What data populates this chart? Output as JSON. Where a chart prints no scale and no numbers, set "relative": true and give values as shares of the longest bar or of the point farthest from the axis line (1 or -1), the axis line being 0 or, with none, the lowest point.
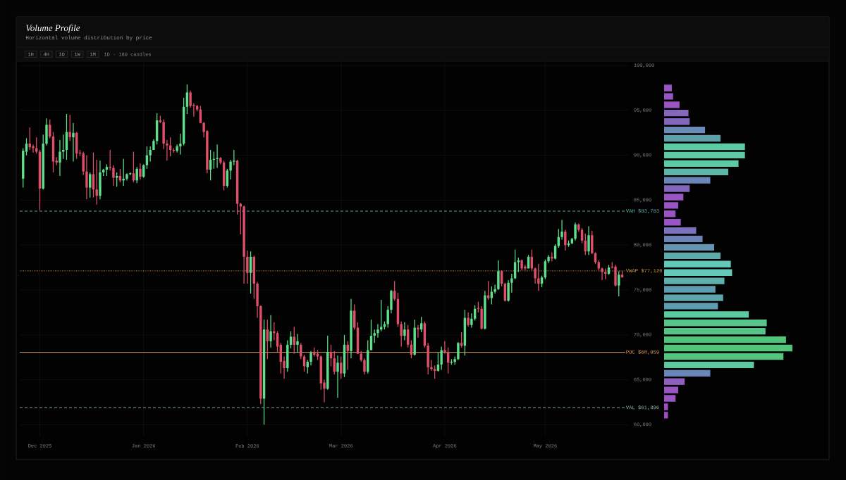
{
  "chart_data": [
    {
      "type": "candlestick",
      "title": "Volume Profile",
      "subtitle": "Horizontal volume distribution by price",
      "annotations": [
        "1H",
        "4H",
        "1D",
        "1W",
        "1M",
        "1D · 180 candles"
      ],
      "x": [
        "2025-11-26",
        "2025-11-27",
        "2025-11-28",
        "2025-11-29",
        "2025-11-30",
        "2025-12-01",
        "2025-12-02",
        "2025-12-03",
        "2025-12-04",
        "2025-12-05",
        "2025-12-06",
        "2025-12-07",
        "2025-12-08",
        "2025-12-09",
        "2025-12-10",
        "2025-12-11",
        "2025-12-12",
        "2025-12-13",
        "2025-12-14",
        "2025-12-15",
        "2025-12-16",
        "2025-12-17",
        "2025-12-18",
        "2025-12-19",
        "2025-12-20",
        "2025-12-21",
        "2025-12-22",
        "2025-12-23",
        "2025-12-24",
        "2025-12-25",
        "2025-12-26",
        "2025-12-27",
        "2025-12-28",
        "2025-12-29",
        "2025-12-30",
        "2025-12-31",
        "2026-01-01",
        "2026-01-02",
        "2026-01-03",
        "2026-01-04",
        "2026-01-05",
        "2026-01-06",
        "2026-01-07",
        "2026-01-08",
        "2026-01-09",
        "2026-01-10",
        "2026-01-11",
        "2026-01-12",
        "2026-01-13",
        "2026-01-14",
        "2026-01-15",
        "2026-01-16",
        "2026-01-17",
        "2026-01-18",
        "2026-01-19",
        "2026-01-20",
        "2026-01-21",
        "2026-01-22",
        "2026-01-23",
        "2026-01-24",
        "2026-01-25",
        "2026-01-26",
        "2026-01-27",
        "2026-01-28",
        "2026-01-29",
        "2026-01-30",
        "2026-01-31",
        "2026-02-01",
        "2026-02-02",
        "2026-02-03",
        "2026-02-04",
        "2026-02-05",
        "2026-02-06",
        "2026-02-07",
        "2026-02-08",
        "2026-02-09",
        "2026-02-10",
        "2026-02-11",
        "2026-02-12",
        "2026-02-13",
        "2026-02-14",
        "2026-02-15",
        "2026-02-16",
        "2026-02-17",
        "2026-02-18",
        "2026-02-19",
        "2026-02-20",
        "2026-02-21",
        "2026-02-22",
        "2026-02-23",
        "2026-02-24",
        "2026-02-25",
        "2026-02-26",
        "2026-02-27",
        "2026-02-28",
        "2026-03-01",
        "2026-03-02",
        "2026-03-03",
        "2026-03-04",
        "2026-03-05",
        "2026-03-06",
        "2026-03-07",
        "2026-03-08",
        "2026-03-09",
        "2026-03-10",
        "2026-03-11",
        "2026-03-12",
        "2026-03-13",
        "2026-03-14",
        "2026-03-15",
        "2026-03-16",
        "2026-03-17",
        "2026-03-18",
        "2026-03-19",
        "2026-03-20",
        "2026-03-21",
        "2026-03-22",
        "2026-03-23",
        "2026-03-24",
        "2026-03-25",
        "2026-03-26",
        "2026-03-27",
        "2026-03-28",
        "2026-03-29",
        "2026-03-30",
        "2026-03-31",
        "2026-04-01",
        "2026-04-02",
        "2026-04-03",
        "2026-04-04",
        "2026-04-05",
        "2026-04-06",
        "2026-04-07",
        "2026-04-08",
        "2026-04-09",
        "2026-04-10",
        "2026-04-11",
        "2026-04-12",
        "2026-04-13",
        "2026-04-14",
        "2026-04-15",
        "2026-04-16",
        "2026-04-17",
        "2026-04-18",
        "2026-04-19",
        "2026-04-20",
        "2026-04-21",
        "2026-04-22",
        "2026-04-23",
        "2026-04-24",
        "2026-04-25",
        "2026-04-26",
        "2026-04-27",
        "2026-04-28",
        "2026-04-29",
        "2026-04-30",
        "2026-05-01",
        "2026-05-02",
        "2026-05-03",
        "2026-05-04",
        "2026-05-05",
        "2026-05-06",
        "2026-05-07",
        "2026-05-08",
        "2026-05-09",
        "2026-05-10",
        "2026-05-11",
        "2026-05-12",
        "2026-05-13",
        "2026-05-14",
        "2026-05-15",
        "2026-05-16",
        "2026-05-17",
        "2026-05-18",
        "2026-05-19",
        "2026-05-20",
        "2026-05-21",
        "2026-05-22",
        "2026-05-23",
        "2026-05-24"
      ],
      "ohlc": [
        [
          87400,
          90800,
          86400,
          90500
        ],
        [
          90400,
          91900,
          90000,
          91300
        ],
        [
          91300,
          93100,
          90600,
          90900
        ],
        [
          91000,
          91200,
          90300,
          90800
        ],
        [
          90800,
          92000,
          90200,
          90400
        ],
        [
          90400,
          90600,
          83900,
          86300
        ],
        [
          86300,
          92300,
          86200,
          91300
        ],
        [
          91300,
          94100,
          91100,
          93400
        ],
        [
          93400,
          94000,
          91900,
          92100
        ],
        [
          92100,
          92600,
          88100,
          89300
        ],
        [
          89400,
          89800,
          88900,
          89200
        ],
        [
          89200,
          91700,
          87700,
          90400
        ],
        [
          90400,
          92300,
          89600,
          90600
        ],
        [
          90600,
          94600,
          89500,
          92600
        ],
        [
          92600,
          94500,
          91600,
          92000
        ],
        [
          92000,
          93600,
          89300,
          92500
        ],
        [
          92500,
          92600,
          89600,
          90200
        ],
        [
          90300,
          90600,
          89900,
          90200
        ],
        [
          90200,
          90400,
          87800,
          88200
        ],
        [
          88200,
          90000,
          85100,
          86400
        ],
        [
          86400,
          88100,
          85300,
          87900
        ],
        [
          87900,
          90300,
          85300,
          86200
        ],
        [
          86200,
          89500,
          84500,
          85500
        ],
        [
          85500,
          89400,
          85100,
          88100
        ],
        [
          88100,
          88500,
          87700,
          88400
        ],
        [
          88400,
          89000,
          87700,
          88700
        ],
        [
          88700,
          90600,
          88300,
          88600
        ],
        [
          88600,
          88900,
          86600,
          87500
        ],
        [
          87500,
          88100,
          86500,
          87700
        ],
        [
          87700,
          88500,
          87000,
          87200
        ],
        [
          87200,
          89600,
          86600,
          87400
        ],
        [
          87400,
          88000,
          87200,
          87900
        ],
        [
          87900,
          88100,
          87800,
          88000
        ],
        [
          88000,
          90400,
          87000,
          87200
        ],
        [
          87200,
          88700,
          86900,
          88500
        ],
        [
          88500,
          89100,
          87300,
          87600
        ],
        [
          87600,
          89000,
          87500,
          88900
        ],
        [
          88900,
          91000,
          88500,
          90000
        ],
        [
          90000,
          91000,
          89300,
          90600
        ],
        [
          90600,
          91800,
          90600,
          91600
        ],
        [
          91600,
          94700,
          91200,
          93900
        ],
        [
          93900,
          94400,
          93600,
          93700
        ],
        [
          93700,
          94000,
          90700,
          91300
        ],
        [
          91300,
          91700,
          89400,
          91100
        ],
        [
          91100,
          92000,
          89900,
          90600
        ],
        [
          90600,
          90800,
          90300,
          90500
        ],
        [
          90500,
          91200,
          90300,
          91000
        ],
        [
          91000,
          92400,
          90100,
          91300
        ],
        [
          91300,
          96400,
          91100,
          95400
        ],
        [
          95400,
          97900,
          94600,
          97000
        ],
        [
          97000,
          97200,
          95300,
          95500
        ],
        [
          95600,
          95800,
          94300,
          95500
        ],
        [
          95500,
          95600,
          94900,
          95100
        ],
        [
          95100,
          95500,
          93600,
          93600
        ],
        [
          93600,
          93700,
          92000,
          92600
        ],
        [
          92700,
          92800,
          88000,
          88400
        ],
        [
          88400,
          90600,
          87200,
          89500
        ],
        [
          89500,
          90400,
          88500,
          89600
        ],
        [
          89600,
          91200,
          88600,
          89700
        ],
        [
          89700,
          89800,
          89000,
          89200
        ],
        [
          89200,
          89400,
          86100,
          86600
        ],
        [
          86600,
          88500,
          86400,
          88300
        ],
        [
          88300,
          89500,
          87300,
          89300
        ],
        [
          89300,
          90600,
          88900,
          89400
        ],
        [
          89400,
          89500,
          83400,
          84600
        ],
        [
          84600,
          84700,
          81200,
          84300
        ],
        [
          84300,
          84400,
          75700,
          78700
        ],
        [
          78700,
          79400,
          75700,
          76900
        ],
        [
          76900,
          79300,
          74600,
          78700
        ],
        [
          78700,
          78800,
          74000,
          75700
        ],
        [
          75700,
          75900,
          71900,
          73200
        ],
        [
          73200,
          73300,
          62300,
          62900
        ],
        [
          62900,
          71700,
          60000,
          70600
        ],
        [
          70600,
          71700,
          67300,
          69300
        ],
        [
          69300,
          72200,
          68600,
          70400
        ],
        [
          70400,
          71400,
          69400,
          70200
        ],
        [
          70200,
          70400,
          68100,
          68700
        ],
        [
          68900,
          69100,
          65700,
          67000
        ],
        [
          67100,
          67600,
          65100,
          66300
        ],
        [
          66300,
          69400,
          65900,
          68900
        ],
        [
          68900,
          70400,
          68500,
          69800
        ],
        [
          69800,
          70900,
          67900,
          68900
        ],
        [
          68900,
          70100,
          68000,
          69300
        ],
        [
          68900,
          69100,
          67300,
          67600
        ],
        [
          67600,
          67800,
          65900,
          66500
        ],
        [
          66400,
          67200,
          65700,
          67000
        ],
        [
          67000,
          68200,
          66600,
          68000
        ],
        [
          68000,
          68600,
          67600,
          67800
        ],
        [
          67900,
          68300,
          67200,
          67600
        ],
        [
          67600,
          67700,
          63900,
          64600
        ],
        [
          64700,
          65000,
          62500,
          64000
        ],
        [
          64000,
          69900,
          63900,
          68100
        ],
        [
          68100,
          68900,
          66500,
          67400
        ],
        [
          67400,
          68200,
          65600,
          65900
        ],
        [
          65900,
          67700,
          63000,
          66900
        ],
        [
          66900,
          67600,
          65100,
          65700
        ],
        [
          65700,
          70000,
          65300,
          68900
        ],
        [
          68900,
          69300,
          66100,
          68200
        ],
        [
          68200,
          74000,
          67400,
          72700
        ],
        [
          72700,
          73400,
          70600,
          70800
        ],
        [
          70800,
          71400,
          67900,
          67900
        ],
        [
          67900,
          68200,
          67000,
          67200
        ],
        [
          67200,
          67400,
          65600,
          65900
        ],
        [
          65900,
          69400,
          65700,
          68300
        ],
        [
          68300,
          71700,
          68300,
          69900
        ],
        [
          69900,
          70600,
          69100,
          70200
        ],
        [
          70200,
          71200,
          69700,
          70600
        ],
        [
          70600,
          73900,
          70400,
          70900
        ],
        [
          70900,
          71500,
          70600,
          71200
        ],
        [
          71200,
          73200,
          70800,
          72800
        ],
        [
          72800,
          75000,
          72400,
          74900
        ],
        [
          74900,
          76000,
          73800,
          74000
        ],
        [
          74000,
          74700,
          70900,
          71200
        ],
        [
          71200,
          71500,
          68700,
          69900
        ],
        [
          69900,
          71400,
          69400,
          70600
        ],
        [
          70600,
          71100,
          68600,
          68900
        ],
        [
          68900,
          69400,
          67400,
          67800
        ],
        [
          67800,
          71700,
          67700,
          70800
        ],
        [
          70800,
          71100,
          69700,
          70600
        ],
        [
          70600,
          72000,
          70300,
          71300
        ],
        [
          71300,
          71500,
          68600,
          68800
        ],
        [
          68800,
          69100,
          65600,
          66400
        ],
        [
          66400,
          67200,
          66000,
          66200
        ],
        [
          66200,
          66600,
          65100,
          66000
        ],
        [
          66000,
          68000,
          65900,
          66700
        ],
        [
          66700,
          68700,
          66100,
          68300
        ],
        [
          68300,
          69300,
          67900,
          68100
        ],
        [
          68100,
          68600,
          65700,
          66900
        ],
        [
          66900,
          67300,
          66700,
          67000
        ],
        [
          67000,
          67600,
          66700,
          67300
        ],
        [
          67300,
          69200,
          67200,
          69100
        ],
        [
          69100,
          70300,
          68600,
          68800
        ],
        [
          68800,
          72800,
          67700,
          71900
        ],
        [
          71900,
          72500,
          70900,
          71100
        ],
        [
          71100,
          72400,
          70800,
          71800
        ],
        [
          71800,
          73300,
          71600,
          72900
        ],
        [
          73000,
          73700,
          72500,
          72900
        ],
        [
          72900,
          73200,
          70600,
          70700
        ],
        [
          70700,
          74900,
          70600,
          74400
        ],
        [
          74400,
          76000,
          73900,
          74100
        ],
        [
          74100,
          75400,
          73400,
          74800
        ],
        [
          74800,
          75600,
          74600,
          75100
        ],
        [
          75100,
          78300,
          75000,
          77100
        ],
        [
          77100,
          77200,
          75400,
          75700
        ],
        [
          75700,
          75800,
          73700,
          73800
        ],
        [
          73800,
          76100,
          73700,
          75800
        ],
        [
          75800,
          76800,
          74700,
          76300
        ],
        [
          76300,
          79500,
          76200,
          78100
        ],
        [
          78100,
          78600,
          77000,
          78300
        ],
        [
          78300,
          78400,
          77200,
          77400
        ],
        [
          77600,
          77800,
          77200,
          77400
        ],
        [
          77400,
          78900,
          77400,
          78700
        ],
        [
          78700,
          79500,
          77200,
          77400
        ],
        [
          77400,
          77500,
          75700,
          76300
        ],
        [
          76300,
          77900,
          74900,
          75700
        ],
        [
          75700,
          76600,
          75300,
          76400
        ],
        [
          76400,
          78400,
          76200,
          78200
        ],
        [
          78200,
          78900,
          78000,
          78700
        ],
        [
          78700,
          79200,
          78200,
          78500
        ],
        [
          78500,
          80100,
          78400,
          79900
        ],
        [
          79900,
          81800,
          79700,
          80900
        ],
        [
          80900,
          82800,
          80600,
          81500
        ],
        [
          81500,
          81700,
          79400,
          80000
        ],
        [
          80000,
          80500,
          79800,
          80200
        ],
        [
          80200,
          80800,
          80100,
          80700
        ],
        [
          80700,
          82500,
          80500,
          82300
        ],
        [
          82300,
          82400,
          81500,
          81700
        ],
        [
          81700,
          81900,
          80200,
          80500
        ],
        [
          80500,
          81300,
          78900,
          79300
        ],
        [
          79300,
          82100,
          78900,
          81100
        ],
        [
          81100,
          81600,
          79000,
          79100
        ],
        [
          79100,
          79200,
          77900,
          78100
        ],
        [
          78100,
          78300,
          77200,
          77400
        ],
        [
          77400,
          77500,
          76100,
          77000
        ],
        [
          77000,
          77400,
          76200,
          76800
        ],
        [
          76800,
          77800,
          76700,
          77500
        ],
        [
          77600,
          78100,
          77400,
          77500
        ],
        [
          77600,
          77800,
          75400,
          75500
        ],
        [
          75500,
          77100,
          74300,
          76700
        ],
        [
          76700,
          77100,
          76400,
          76400
        ]
      ],
      "xlim": [
        "2025-11-25",
        "2026-05-26"
      ],
      "xticks": [
        {
          "value": "2025-12-01",
          "label": "Dec 2025"
        },
        {
          "value": "2026-01-01",
          "label": "Jan 2026"
        },
        {
          "value": "2026-02-01",
          "label": "Feb 2026"
        },
        {
          "value": "2026-03-01",
          "label": "Mar 2026"
        },
        {
          "value": "2026-04-01",
          "label": "Apr 2026"
        },
        {
          "value": "2026-05-01",
          "label": "May 2026"
        }
      ],
      "ylim": [
        58700,
        100400
      ],
      "yticks": [
        {
          "value": 60000,
          "label": "60,000"
        },
        {
          "value": 65000,
          "label": "65,000"
        },
        {
          "value": 70000,
          "label": "70,000"
        },
        {
          "value": 75000,
          "label": "75,000"
        },
        {
          "value": 80000,
          "label": "80,000"
        },
        {
          "value": 85000,
          "label": "85,000"
        },
        {
          "value": 90000,
          "label": "90,000"
        },
        {
          "value": 95000,
          "label": "95,000"
        },
        {
          "value": 100000,
          "label": "100,000"
        }
      ],
      "grid": true,
      "ref_lines": [
        {
          "axis": "y",
          "value": 83783,
          "label": "VAH $83,783",
          "color": "#5fb3ad",
          "line_style": "dashed"
        },
        {
          "axis": "y",
          "value": 77126,
          "label": "VWAP $77,126",
          "color": "#d9a24a",
          "line_style": "dotted"
        },
        {
          "axis": "y",
          "value": 68059,
          "label": "POC $68,059",
          "color": "#e0a060",
          "line_style": "solid"
        },
        {
          "axis": "y",
          "value": 61896,
          "label": "VAL $61,896",
          "color": "#8fb8b4",
          "line_style": "dashed"
        }
      ]
    },
    {
      "type": "bar",
      "orientation": "horizontal",
      "relative": true,
      "categories": [
        null,
        null,
        null,
        null,
        null,
        null,
        null,
        null,
        null,
        null,
        null,
        null,
        null,
        null,
        null,
        null,
        null,
        null,
        null,
        null,
        null,
        null,
        null,
        null,
        null,
        null,
        null,
        null,
        null,
        null,
        null,
        null,
        null,
        null,
        null,
        null,
        null,
        null,
        null,
        null
      ],
      "values": [
        0.06,
        0.07,
        0.12,
        0.19,
        0.2,
        0.32,
        0.44,
        0.63,
        0.63,
        0.58,
        0.5,
        0.36,
        0.2,
        0.15,
        0.11,
        0.09,
        0.13,
        0.25,
        0.3,
        0.39,
        0.44,
        0.52,
        0.53,
        0.47,
        0.4,
        0.46,
        0.42,
        0.66,
        0.8,
        0.79,
        0.95,
        1,
        0.93,
        0.7,
        0.36,
        0.16,
        0.11,
        0.09,
        0.03,
        0.03
      ],
      "colors": [
        "#9a55c4",
        "#9a55c4",
        "#9a55c4",
        "#8466bd",
        "#8466bd",
        "#6a8ab8",
        "#5ea0aa",
        "#5ccaa5",
        "#5ccaa5",
        "#5ccaa5",
        "#5bb5a8",
        "#6a86b8",
        "#8466bd",
        "#9a55c4",
        "#9a55c4",
        "#9a55c4",
        "#9a55c4",
        "#7b72bd",
        "#6f82b8",
        "#6496b0",
        "#5eaaaa",
        "#62c9b8",
        "#62c9b8",
        "#5eb0ac",
        "#5e9cb0",
        "#5ea6ac",
        "#5e9cb0",
        "#5ccaa0",
        "#58c48a",
        "#58c48a",
        "#52c47a",
        "#52c47a",
        "#55c47e",
        "#5cc9a0",
        "#6a86b8",
        "#9060c0",
        "#9a55c4",
        "#9a55c4",
        "#a04cc4",
        "#a04cc4"
      ]
    }
  ]
}
